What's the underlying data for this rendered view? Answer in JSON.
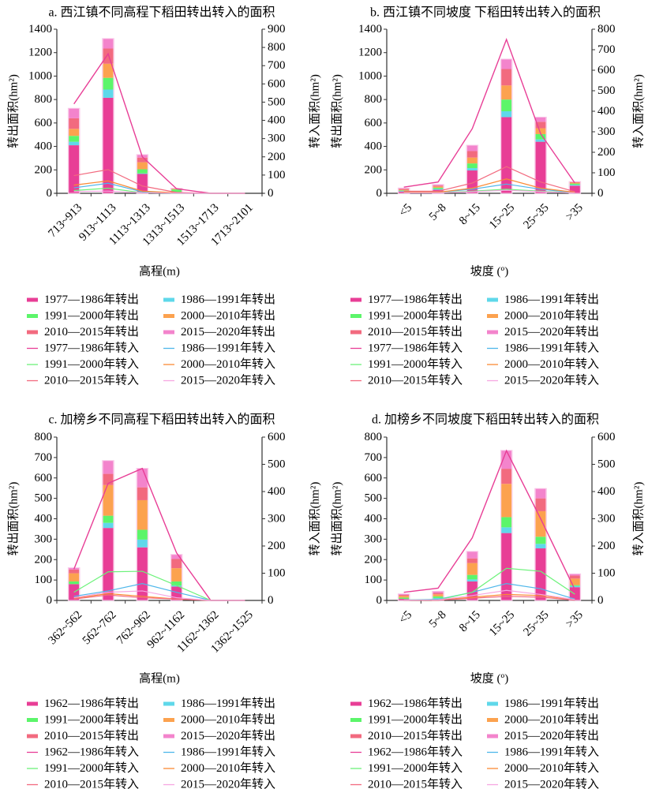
{
  "legend_series": {
    "out_colors": [
      "#e83e96",
      "#5fd8ea",
      "#5cf56a",
      "#fca24f",
      "#f26a7f",
      "#f384cc"
    ],
    "in_colors": [
      "#e83e96",
      "#4fb7ea",
      "#6cf27a",
      "#fb8a35",
      "#f26a7f",
      "#f6a6e2"
    ]
  },
  "chart_data": [
    {
      "id": "a",
      "type": "bar",
      "title": "a. 西江镇不同高程下稻田转出转入的面积",
      "xlabel": "高程(m)",
      "ylabel": "转出面积(hm²)",
      "y2label": "转入面积(hm²)",
      "ylim": [
        0,
        1400
      ],
      "yticks": [
        0,
        200,
        400,
        600,
        800,
        1000,
        1200,
        1400
      ],
      "y2lim": [
        0,
        900
      ],
      "y2ticks": [
        0,
        100,
        200,
        300,
        400,
        500,
        600,
        700,
        800,
        900
      ],
      "categories": [
        "713~913",
        "913~1113",
        "1113~1313",
        "1313~1513",
        "1513~1713",
        "1713~2101"
      ],
      "legend": [
        "1977—1986年转出",
        "1986—1991年转出",
        "1991—2000年转出",
        "2000—2010年转出",
        "2010—2015年转出",
        "2015—2020年转出",
        "1977—1986年转入",
        "1986—1991年转入",
        "1991—2000年转入",
        "2000—2010年转入",
        "2010—2015年转入",
        "2015—2020年转入"
      ],
      "stacked_series": [
        {
          "name": "1977—1986年转出",
          "values": [
            410,
            815,
            165,
            5,
            0,
            0
          ]
        },
        {
          "name": "1986—1991年转出",
          "values": [
            30,
            70,
            5,
            3,
            0,
            0
          ]
        },
        {
          "name": "1991—2000年转出",
          "values": [
            50,
            100,
            35,
            25,
            0,
            0
          ]
        },
        {
          "name": "2000—2010年转出",
          "values": [
            60,
            120,
            60,
            5,
            0,
            0
          ]
        },
        {
          "name": "2010—2015年转出",
          "values": [
            90,
            130,
            40,
            3,
            0,
            0
          ]
        },
        {
          "name": "2015—2020年转出",
          "values": [
            85,
            85,
            25,
            2,
            0,
            0
          ]
        }
      ],
      "line_series": [
        {
          "name": "1977—1986年转入",
          "values": [
            490,
            765,
            200,
            25,
            0,
            0
          ]
        },
        {
          "name": "1986—1991年转入",
          "values": [
            30,
            55,
            8,
            2,
            0,
            0
          ]
        },
        {
          "name": "1991—2000年转入",
          "values": [
            15,
            28,
            3,
            1,
            0,
            0
          ]
        },
        {
          "name": "2000—2010年转入",
          "values": [
            45,
            68,
            12,
            3,
            0,
            0
          ]
        },
        {
          "name": "2010—2015年转入",
          "values": [
            97,
            130,
            40,
            5,
            0,
            0
          ]
        },
        {
          "name": "2015—2020年转入",
          "values": [
            10,
            12,
            3,
            1,
            0,
            0
          ]
        }
      ]
    },
    {
      "id": "b",
      "type": "bar",
      "title": "b. 西江镇不同坡度 下稻田转出转入的面积",
      "xlabel": "坡度 (º)",
      "ylabel": "转出面积(hm²)",
      "y2label": "转入面积(hm²)",
      "ylim": [
        0,
        1400
      ],
      "yticks": [
        0,
        200,
        400,
        600,
        800,
        1000,
        1200,
        1400
      ],
      "y2lim": [
        0,
        800
      ],
      "y2ticks": [
        0,
        100,
        200,
        300,
        400,
        500,
        600,
        700,
        800
      ],
      "categories": [
        "<5",
        "5~8",
        "8~15",
        "15~25",
        "25~35",
        ">35"
      ],
      "legend": [
        "1977—1986年转出",
        "1986—1991年转出",
        "1991—2000年转出",
        "2000—2010年转出",
        "2010—2015年转出",
        "2015—2020年转出",
        "1977—1986年转入",
        "1986—1991年转入",
        "1991—2000年转入",
        "2000—2010年转入",
        "2010—2015年转入",
        "2015—2020年转入"
      ],
      "stacked_series": [
        {
          "name": "1977—1986年转出",
          "values": [
            15,
            30,
            195,
            650,
            440,
            65
          ]
        },
        {
          "name": "1986—1991年转出",
          "values": [
            5,
            8,
            20,
            50,
            20,
            8
          ]
        },
        {
          "name": "1991—2000年转出",
          "values": [
            5,
            10,
            40,
            100,
            45,
            10
          ]
        },
        {
          "name": "2000—2010年转出",
          "values": [
            5,
            10,
            50,
            120,
            50,
            8
          ]
        },
        {
          "name": "2010—2015年转出",
          "values": [
            8,
            8,
            55,
            140,
            55,
            5
          ]
        },
        {
          "name": "2015—2020年转出",
          "values": [
            7,
            9,
            50,
            85,
            40,
            4
          ]
        }
      ],
      "line_series": [
        {
          "name": "1977—1986年转入",
          "values": [
            30,
            55,
            315,
            750,
            290,
            50
          ]
        },
        {
          "name": "1986—1991年转入",
          "values": [
            5,
            5,
            20,
            45,
            20,
            3
          ]
        },
        {
          "name": "1991—2000年转入",
          "values": [
            3,
            3,
            10,
            20,
            10,
            2
          ]
        },
        {
          "name": "2000—2010年转入",
          "values": [
            5,
            5,
            25,
            70,
            25,
            5
          ]
        },
        {
          "name": "2010—2015年转入",
          "values": [
            10,
            10,
            50,
            130,
            55,
            8
          ]
        },
        {
          "name": "2015—2020年转入",
          "values": [
            2,
            2,
            8,
            15,
            8,
            2
          ]
        }
      ]
    },
    {
      "id": "c",
      "type": "bar",
      "title": "c. 加榜乡不同高程下稻田转出转入的面积",
      "xlabel": "高程(m)",
      "ylabel": "转出面积(hm²)",
      "y2label": "转入面积(hm²)",
      "ylim": [
        0,
        800
      ],
      "yticks": [
        0,
        100,
        200,
        300,
        400,
        500,
        600,
        700,
        800
      ],
      "y2lim": [
        0,
        600
      ],
      "y2ticks": [
        0,
        100,
        200,
        300,
        400,
        500,
        600
      ],
      "categories": [
        "362~562",
        "562~762",
        "762~962",
        "962~1162",
        "1162~1362",
        "1362~1525"
      ],
      "legend": [
        "1962—1986年转出",
        "1986—1991年转出",
        "1991—2000年转出",
        "2000—2010年转出",
        "2010—2015年转出",
        "2015—2020年转出",
        "1962—1986年转入",
        "1986—1991年转入",
        "1991—2000年转入",
        "2000—2010年转入",
        "2010—2015年转入",
        "2015—2020年转入"
      ],
      "stacked_series": [
        {
          "name": "1962—1986年转出",
          "values": [
            80,
            355,
            260,
            68,
            0,
            0
          ]
        },
        {
          "name": "1986—1991年转出",
          "values": [
            0,
            25,
            38,
            5,
            0,
            0
          ]
        },
        {
          "name": "1991—2000年转出",
          "values": [
            13,
            35,
            48,
            20,
            0,
            0
          ]
        },
        {
          "name": "2000—2010年转出",
          "values": [
            40,
            150,
            145,
            65,
            0,
            0
          ]
        },
        {
          "name": "2010—2015年转出",
          "values": [
            18,
            55,
            63,
            45,
            0,
            0
          ]
        },
        {
          "name": "2015—2020年转出",
          "values": [
            9,
            65,
            93,
            22,
            0,
            0
          ]
        }
      ],
      "line_series": [
        {
          "name": "1962—1986年转入",
          "values": [
            115,
            430,
            485,
            175,
            0,
            0
          ]
        },
        {
          "name": "1986—1991年转入",
          "values": [
            15,
            35,
            62,
            30,
            0,
            0
          ]
        },
        {
          "name": "1991—2000年转入",
          "values": [
            30,
            105,
            107,
            55,
            0,
            0
          ]
        },
        {
          "name": "2000—2010年转入",
          "values": [
            8,
            25,
            15,
            5,
            0,
            0
          ]
        },
        {
          "name": "2010—2015年转入",
          "values": [
            5,
            20,
            10,
            5,
            0,
            0
          ]
        },
        {
          "name": "2015—2020年转入",
          "values": [
            10,
            30,
            35,
            10,
            0,
            0
          ]
        }
      ]
    },
    {
      "id": "d",
      "type": "bar",
      "title": "d. 加榜乡不同坡度下稻田转出转入的面积",
      "xlabel": "坡度 (º)",
      "ylabel": "转出面积(hm²)",
      "y2label": "转入面积(hm²)",
      "ylim": [
        0,
        800
      ],
      "yticks": [
        0,
        100,
        200,
        300,
        400,
        500,
        600,
        700,
        800
      ],
      "y2lim": [
        0,
        600
      ],
      "y2ticks": [
        0,
        100,
        200,
        300,
        400,
        500,
        600
      ],
      "categories": [
        "<5",
        "5~8",
        "8~15",
        "15~25",
        "25~35",
        ">35"
      ],
      "legend": [
        "1962—1986年转出",
        "1986—1991年转出",
        "1991—2000年转出",
        "2000—2010年转出",
        "2010—2015年转出",
        "2015—2020年转出",
        "1962—1986年转入",
        "1986—1991年转入",
        "1991—2000年转入",
        "2000—2010年转入",
        "2010—2015年转入",
        "2015—2020年转入"
      ],
      "stacked_series": [
        {
          "name": "1962—1986年转出",
          "values": [
            8,
            8,
            93,
            330,
            255,
            65
          ]
        },
        {
          "name": "1986—1991年转出",
          "values": [
            0,
            4,
            10,
            28,
            22,
            6
          ]
        },
        {
          "name": "1991—2000年转出",
          "values": [
            6,
            8,
            22,
            50,
            35,
            4
          ]
        },
        {
          "name": "2000—2010年转出",
          "values": [
            8,
            10,
            58,
            163,
            125,
            32
          ]
        },
        {
          "name": "2010—2015年转出",
          "values": [
            5,
            7,
            23,
            74,
            63,
            15
          ]
        },
        {
          "name": "2015—2020年转出",
          "values": [
            5,
            8,
            34,
            90,
            48,
            8
          ]
        }
      ],
      "line_series": [
        {
          "name": "1962—1986年转入",
          "values": [
            30,
            45,
            230,
            550,
            300,
            40
          ]
        },
        {
          "name": "1986—1991年转入",
          "values": [
            2,
            4,
            30,
            62,
            43,
            5
          ]
        },
        {
          "name": "1991—2000年转入",
          "values": [
            2,
            2,
            30,
            118,
            107,
            23
          ]
        },
        {
          "name": "2000—2010年转入",
          "values": [
            1,
            1,
            12,
            22,
            18,
            2
          ]
        },
        {
          "name": "2010—2015年转入",
          "values": [
            1,
            1,
            8,
            15,
            12,
            1
          ]
        },
        {
          "name": "2015—2020年转入",
          "values": [
            1,
            2,
            18,
            37,
            22,
            3
          ]
        }
      ]
    }
  ]
}
